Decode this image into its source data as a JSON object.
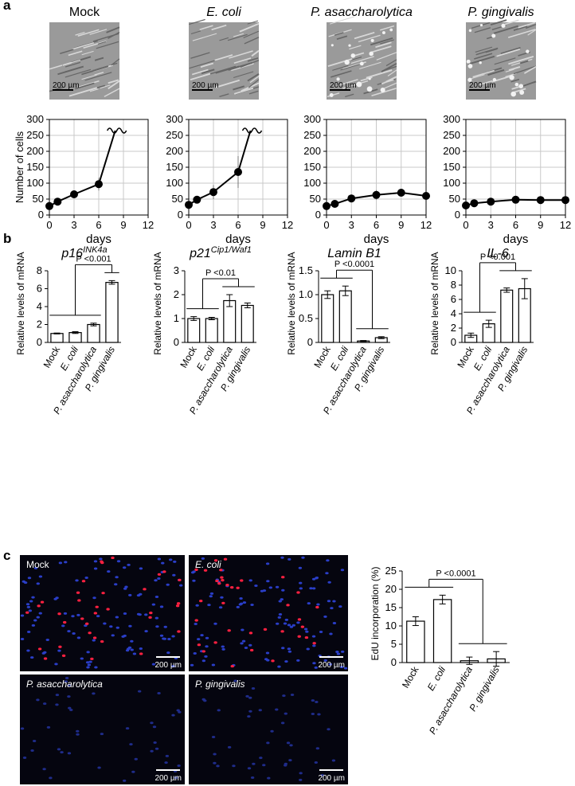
{
  "panel_labels": [
    "a",
    "b",
    "c"
  ],
  "micrographs": {
    "titles": [
      "Mock",
      "E. coli",
      "P. asaccharolytica",
      "P. gingivalis"
    ],
    "italic": [
      false,
      true,
      true,
      true
    ],
    "scale_bar": "200 µm"
  },
  "fluorescence": {
    "labels": [
      "Mock",
      "E. coli",
      "P. asaccharolytica",
      "P. gingivalis"
    ],
    "italic": [
      false,
      true,
      true,
      true
    ],
    "scale_bar": "200 µm"
  },
  "chart_data": [
    {
      "type": "line",
      "ylabel": "Number of cells",
      "xlabel": "days",
      "x": [
        0,
        1,
        3,
        6
      ],
      "values": [
        28,
        42,
        65,
        97
      ],
      "errors": [
        0,
        0,
        0,
        20
      ],
      "break": [
        8,
        265
      ],
      "xlim": [
        0,
        12
      ],
      "ylim": [
        0,
        300
      ],
      "xticks": [
        0,
        3,
        6,
        9,
        12
      ],
      "yticks": [
        0,
        50,
        100,
        150,
        200,
        250,
        300
      ],
      "grid": true,
      "color": "#000000"
    },
    {
      "type": "line",
      "xlabel": "days",
      "x": [
        0,
        1,
        3,
        6
      ],
      "values": [
        32,
        48,
        72,
        135
      ],
      "errors": [
        0,
        0,
        22,
        50
      ],
      "break": [
        7.5,
        265
      ],
      "xlim": [
        0,
        12
      ],
      "ylim": [
        0,
        300
      ],
      "xticks": [
        0,
        3,
        6,
        9,
        12
      ],
      "yticks": [
        0,
        50,
        100,
        150,
        200,
        250,
        300
      ],
      "grid": true,
      "color": "#000000"
    },
    {
      "type": "line",
      "xlabel": "days",
      "x": [
        0,
        1,
        3,
        6,
        9,
        12
      ],
      "values": [
        28,
        35,
        52,
        63,
        70,
        60
      ],
      "errors": [
        0,
        0,
        12,
        15,
        12,
        12
      ],
      "xlim": [
        0,
        12
      ],
      "ylim": [
        0,
        300
      ],
      "xticks": [
        0,
        3,
        6,
        9,
        12
      ],
      "yticks": [
        0,
        50,
        100,
        150,
        200,
        250,
        300
      ],
      "grid": true,
      "color": "#000000"
    },
    {
      "type": "line",
      "xlabel": "days",
      "x": [
        0,
        1,
        3,
        6,
        9,
        12
      ],
      "values": [
        30,
        37,
        42,
        48,
        47,
        47
      ],
      "errors": [
        0,
        0,
        8,
        5,
        0,
        5
      ],
      "xlim": [
        0,
        12
      ],
      "ylim": [
        0,
        300
      ],
      "xticks": [
        0,
        3,
        6,
        9,
        12
      ],
      "yticks": [
        0,
        50,
        100,
        150,
        200,
        250,
        300
      ],
      "grid": true,
      "color": "#000000"
    },
    {
      "type": "bar",
      "title": "p16",
      "title_sup": "INK4a",
      "ylabel": "Relative levels of mRNA",
      "categories": [
        "Mock",
        "E. coli",
        "P. asaccharolytica",
        "P. gingivalis"
      ],
      "italic_categories": [
        false,
        true,
        true,
        true
      ],
      "values": [
        1.0,
        1.1,
        2.0,
        6.7
      ],
      "errors": [
        0.05,
        0.1,
        0.15,
        0.2
      ],
      "ylim": [
        0,
        8
      ],
      "yticks": [
        0,
        2,
        4,
        6,
        8
      ],
      "color": "#ffffff",
      "comparison": {
        "label": "P <0.001",
        "groups": [
          [
            "Mock",
            "E. coli",
            "P. asaccharolytica"
          ],
          [
            "P. gingivalis"
          ]
        ]
      }
    },
    {
      "type": "bar",
      "title": "p21",
      "title_sup": "Cip1/Waf1",
      "ylabel": "Relative levels of mRNA",
      "categories": [
        "Mock",
        "E. coli",
        "P. asaccharolytica",
        "P. gingivalis"
      ],
      "italic_categories": [
        false,
        true,
        true,
        true
      ],
      "values": [
        1.0,
        1.0,
        1.75,
        1.55
      ],
      "errors": [
        0.08,
        0.05,
        0.25,
        0.1
      ],
      "ylim": [
        0,
        3
      ],
      "yticks": [
        0,
        1,
        2,
        3
      ],
      "color": "#ffffff",
      "comparison": {
        "label": "P <0.01",
        "groups": [
          [
            "Mock",
            "E. coli"
          ],
          [
            "P. asaccharolytica",
            "P. gingivalis"
          ]
        ]
      }
    },
    {
      "type": "bar",
      "title": "Lamin B1",
      "ylabel": "Relative levels of mRNA",
      "categories": [
        "Mock",
        "E. coli",
        "P. asaccharolytica",
        "P. gingivalis"
      ],
      "italic_categories": [
        false,
        true,
        true,
        true
      ],
      "values": [
        1.0,
        1.08,
        0.03,
        0.1
      ],
      "errors": [
        0.08,
        0.1,
        0.01,
        0.02
      ],
      "ylim": [
        0,
        1.5
      ],
      "yticks": [
        0,
        0.5,
        {
          "value": 1,
          "label": "1.0"
        },
        1.5
      ],
      "color": "#ffffff",
      "comparison": {
        "label": "P <0.0001",
        "groups": [
          [
            "Mock",
            "E. coli"
          ],
          [
            "P. asaccharolytica",
            "P. gingivalis"
          ]
        ]
      }
    },
    {
      "type": "bar",
      "title": "IL-6",
      "ylabel": "Relative levels of mRNA",
      "categories": [
        "Mock",
        "E. coli",
        "P. asaccharolytica",
        "P. gingivalis"
      ],
      "italic_categories": [
        false,
        true,
        true,
        true
      ],
      "values": [
        1.0,
        2.6,
        7.3,
        7.5
      ],
      "errors": [
        0.3,
        0.5,
        0.3,
        1.4
      ],
      "ylim": [
        0,
        10
      ],
      "yticks": [
        0,
        2,
        4,
        6,
        8,
        10
      ],
      "color": "#ffffff",
      "comparison": {
        "label": "P <0.001",
        "groups": [
          [
            "Mock",
            "E. coli"
          ],
          [
            "P. asaccharolytica",
            "P. gingivalis"
          ]
        ]
      }
    },
    {
      "type": "bar",
      "ylabel": "EdU incorporation (%)",
      "categories": [
        "Mock",
        "E. coli",
        "P. asaccharolytica",
        "P. gingivalis"
      ],
      "italic_categories": [
        false,
        true,
        true,
        true
      ],
      "values": [
        11.3,
        17.2,
        0.5,
        1.0
      ],
      "errors": [
        1.2,
        1.2,
        1.0,
        2.0
      ],
      "ylim": [
        0,
        25
      ],
      "yticks": [
        0,
        5,
        10,
        15,
        20,
        25
      ],
      "color": "#ffffff",
      "comparison": {
        "label": "P <0.0001",
        "groups": [
          [
            "Mock",
            "E. coli"
          ],
          [
            "P. asaccharolytica",
            "P. gingivalis"
          ]
        ]
      }
    }
  ]
}
